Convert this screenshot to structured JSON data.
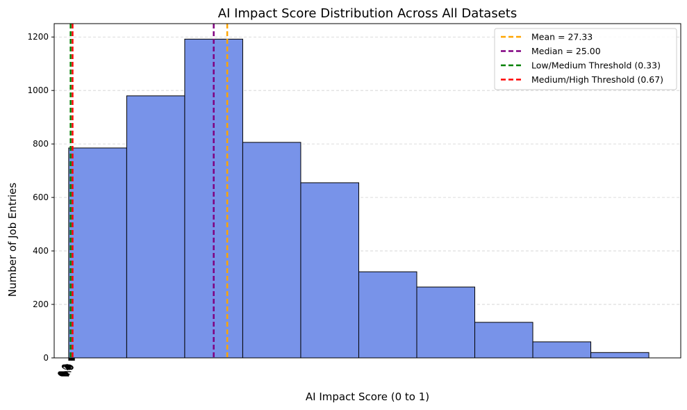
{
  "chart_data": {
    "type": "bar",
    "title": "AI Impact Score Distribution Across All Datasets",
    "xlabel": "AI Impact Score (0 to 1)",
    "ylabel": "Number of Job Entries",
    "xlim": [
      -2.5,
      105.5
    ],
    "ylim": [
      0,
      1250
    ],
    "yticks": [
      0,
      200,
      400,
      600,
      800,
      1000,
      1200
    ],
    "xticks": [
      0,
      0.1,
      0.2,
      0.3,
      0.4,
      0.5,
      0.6,
      0.7,
      0.8,
      0.9,
      1.0
    ],
    "xtick_labels": [
      "0.0",
      "0.1",
      "0.2",
      "0.3",
      "0.4",
      "0.5",
      "0.6",
      "0.7",
      "0.8",
      "0.9",
      "1.0"
    ],
    "grid": "y-dashed",
    "legend_position": "top-right",
    "bins": [
      {
        "start": 0,
        "end": 10,
        "count": 785
      },
      {
        "start": 10,
        "end": 20,
        "count": 980
      },
      {
        "start": 20,
        "end": 30,
        "count": 1192
      },
      {
        "start": 30,
        "end": 40,
        "count": 806
      },
      {
        "start": 40,
        "end": 50,
        "count": 655
      },
      {
        "start": 50,
        "end": 60,
        "count": 322
      },
      {
        "start": 60,
        "end": 70,
        "count": 265
      },
      {
        "start": 70,
        "end": 80,
        "count": 133
      },
      {
        "start": 80,
        "end": 90,
        "count": 60
      },
      {
        "start": 90,
        "end": 100,
        "count": 20
      }
    ],
    "reference_lines": [
      {
        "label": "Mean = 27.33",
        "x": 27.33,
        "color": "#ffa500"
      },
      {
        "label": "Median = 25.00",
        "x": 25.0,
        "color": "#800080"
      },
      {
        "label": "Low/Medium Threshold (0.33)",
        "x": 0.33,
        "color": "#008000"
      },
      {
        "label": "Medium/High Threshold (0.67)",
        "x": 0.67,
        "color": "#ff0000"
      }
    ],
    "colors": {
      "bar_fill": "#7893e9",
      "bar_edge": "#000000",
      "grid": "#d0d0d0"
    }
  }
}
